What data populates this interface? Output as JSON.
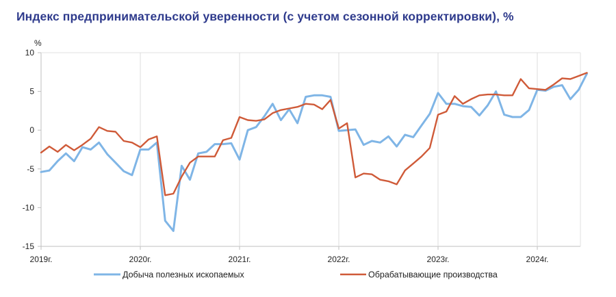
{
  "chart_data": {
    "type": "line",
    "title": "Индекс предпринимательской уверенности (с учетом сезонной корректировки), %",
    "ylabel": "%",
    "xlabel": "",
    "ylim": [
      -15,
      10
    ],
    "yticks": [
      10,
      5,
      0,
      -5,
      -10,
      -15
    ],
    "xticks": [
      "2019г.",
      "2020г.",
      "2021г.",
      "2022г.",
      "2023г.",
      "2024г."
    ],
    "x_start": "2019-01",
    "grid": "vertical",
    "legend": "bottom",
    "series": [
      {
        "name": "Добыча полезных ископаемых",
        "color": "#7fb5e6",
        "values": [
          -5.4,
          -5.2,
          -4.0,
          -3.0,
          -4.0,
          -2.2,
          -2.5,
          -1.6,
          -3.1,
          -4.2,
          -5.3,
          -5.8,
          -2.5,
          -2.5,
          -1.6,
          -11.7,
          -13.0,
          -4.6,
          -6.4,
          -3.0,
          -2.8,
          -1.8,
          -1.8,
          -1.7,
          -3.8,
          0.0,
          0.4,
          1.8,
          3.4,
          1.3,
          2.7,
          0.9,
          4.3,
          4.5,
          4.5,
          4.3,
          -0.1,
          0.0,
          0.1,
          -1.9,
          -1.4,
          -1.6,
          -0.8,
          -2.1,
          -0.6,
          -0.9,
          0.6,
          2.1,
          4.8,
          3.4,
          3.4,
          3.1,
          3.0,
          1.9,
          3.2,
          5.0,
          2.0,
          1.7,
          1.7,
          2.6,
          5.2,
          5.1,
          5.6,
          5.8,
          4.0,
          5.2,
          7.3
        ]
      },
      {
        "name": "Обрабатывающие производства",
        "color": "#cf5a38",
        "values": [
          -2.9,
          -2.1,
          -2.8,
          -1.9,
          -2.6,
          -1.9,
          -1.1,
          0.4,
          -0.1,
          -0.2,
          -1.4,
          -1.6,
          -2.2,
          -1.2,
          -0.8,
          -8.4,
          -8.2,
          -6.0,
          -4.2,
          -3.4,
          -3.4,
          -3.4,
          -1.3,
          -1.0,
          1.7,
          1.3,
          1.2,
          1.4,
          2.2,
          2.6,
          2.8,
          3.0,
          3.4,
          3.3,
          2.7,
          3.9,
          0.2,
          0.9,
          -6.1,
          -5.6,
          -5.7,
          -6.4,
          -6.6,
          -7.0,
          -5.2,
          -4.3,
          -3.4,
          -2.3,
          2.0,
          2.4,
          4.4,
          3.4,
          4.0,
          4.5,
          4.6,
          4.6,
          4.5,
          4.5,
          6.6,
          5.4,
          5.3,
          5.2,
          5.9,
          6.7,
          6.6,
          7.0,
          7.4
        ]
      }
    ]
  }
}
